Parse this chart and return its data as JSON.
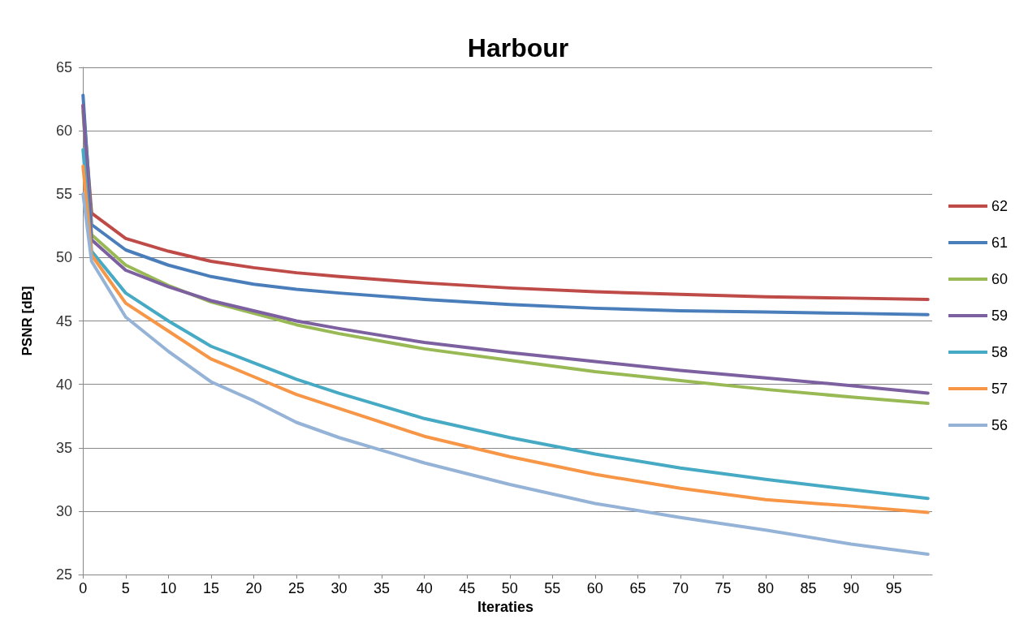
{
  "chart_data": {
    "type": "line",
    "title": "Harbour",
    "xlabel": "Iteraties",
    "ylabel": "PSNR [dB]",
    "x": [
      0,
      1,
      5,
      10,
      15,
      20,
      25,
      30,
      40,
      50,
      60,
      70,
      80,
      90,
      99
    ],
    "xlim": [
      -0.5,
      99.5
    ],
    "xticks": [
      0,
      5,
      10,
      15,
      20,
      25,
      30,
      35,
      40,
      45,
      50,
      55,
      60,
      65,
      70,
      75,
      80,
      85,
      90,
      95
    ],
    "ylim": [
      25,
      65
    ],
    "yticks": [
      25,
      30,
      35,
      40,
      45,
      50,
      55,
      60,
      65
    ],
    "grid": "y",
    "legend": "right",
    "marker": "none",
    "line_style": "solid",
    "series": [
      {
        "name": "62",
        "color": "#be4b48",
        "values": [
          62,
          53.5,
          51.5,
          50.5,
          49.7,
          49.2,
          48.8,
          48.5,
          48.0,
          47.6,
          47.3,
          47.1,
          46.9,
          46.8,
          46.7
        ]
      },
      {
        "name": "61",
        "color": "#4a7ebb",
        "values": [
          62.8,
          52.6,
          50.6,
          49.4,
          48.5,
          47.9,
          47.5,
          47.2,
          46.7,
          46.3,
          46.0,
          45.8,
          45.7,
          45.6,
          45.5
        ]
      },
      {
        "name": "60",
        "color": "#98b954",
        "values": [
          61.5,
          51.8,
          49.4,
          47.8,
          46.5,
          45.6,
          44.7,
          44.0,
          42.8,
          41.9,
          41.0,
          40.3,
          39.6,
          39.0,
          38.5
        ]
      },
      {
        "name": "59",
        "color": "#7d60a0",
        "values": [
          62,
          51.4,
          49.0,
          47.7,
          46.6,
          45.8,
          45.0,
          44.4,
          43.3,
          42.5,
          41.8,
          41.1,
          40.5,
          39.9,
          39.3
        ]
      },
      {
        "name": "58",
        "color": "#46aac5",
        "values": [
          58.5,
          50.5,
          47.2,
          45.0,
          43.0,
          41.7,
          40.4,
          39.3,
          37.3,
          35.8,
          34.5,
          33.4,
          32.5,
          31.7,
          31.0
        ]
      },
      {
        "name": "57",
        "color": "#f79646",
        "values": [
          57.2,
          50.2,
          46.4,
          44.2,
          42.0,
          40.6,
          39.2,
          38.1,
          35.9,
          34.3,
          32.9,
          31.8,
          30.9,
          30.4,
          29.9
        ]
      },
      {
        "name": "56",
        "color": "#95b3d7",
        "values": [
          55,
          49.7,
          45.3,
          42.6,
          40.2,
          38.7,
          37.0,
          35.8,
          33.8,
          32.1,
          30.6,
          29.5,
          28.5,
          27.4,
          26.6
        ]
      }
    ]
  }
}
